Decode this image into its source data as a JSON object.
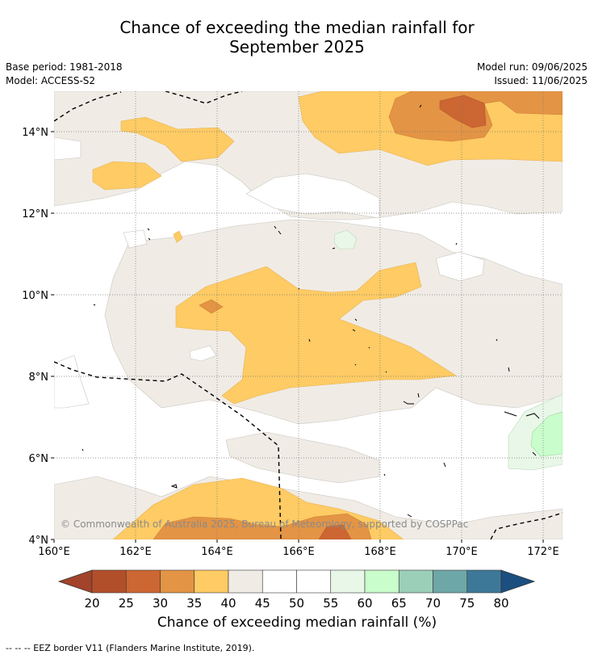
{
  "title_line1": "Chance of exceeding the median rainfall for",
  "title_line2": "September 2025",
  "meta": {
    "base_period": "Base period: 1981-2018",
    "model": "Model: ACCESS-S2",
    "model_run": "Model run: 09/06/2025",
    "issued": "Issued: 11/06/2025"
  },
  "copyright": "© Commonwealth of Australia 2025, Bureau of Meteorology, supported by COSPPac",
  "x_ticks": [
    "160°E",
    "162°E",
    "164°E",
    "166°E",
    "168°E",
    "170°E",
    "172°E"
  ],
  "y_ticks": [
    "4°N",
    "6°N",
    "8°N",
    "10°N",
    "12°N",
    "14°N"
  ],
  "colorbar": {
    "title": "Chance of exceeding median rainfall (%)",
    "labels": [
      "20",
      "25",
      "30",
      "35",
      "40",
      "45",
      "50",
      "55",
      "60",
      "65",
      "70",
      "75",
      "80"
    ],
    "under_color": "#a2432a",
    "over_color": "#1a4f80",
    "colors": [
      "#b24f2b",
      "#cc6632",
      "#e39444",
      "#fecb64",
      "#f0ece5",
      "#ffffff",
      "#ffffff",
      "#e9f7e8",
      "#c9fdcb",
      "#9bcfb8",
      "#6ea7a8",
      "#3e7898"
    ]
  },
  "footnote": "--  --  -- EEZ border V11 (Flanders Marine Institute, 2019)."
}
